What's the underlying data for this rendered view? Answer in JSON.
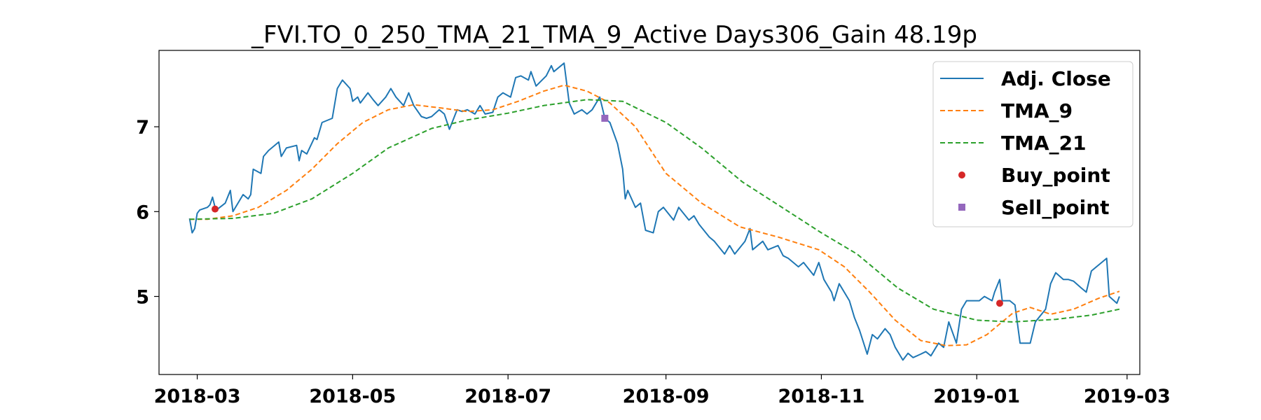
{
  "chart_data": {
    "type": "line",
    "title": "_FVI.TO_0_250_TMA_21_TMA_9_Active Days306_Gain  48.19p",
    "xlabel": "",
    "ylabel": "",
    "x_axis": "date",
    "xlim": [
      "2018-02-14",
      "2019-03-06"
    ],
    "ylim": [
      4.08,
      7.9
    ],
    "x_ticks": [
      "2018-03-01",
      "2018-05-01",
      "2018-07-01",
      "2018-09-01",
      "2018-11-01",
      "2019-01-01",
      "2019-03-01"
    ],
    "x_tick_labels": [
      "2018-03",
      "2018-05",
      "2018-07",
      "2018-09",
      "2018-11",
      "2019-01",
      "2019-03"
    ],
    "y_ticks": [
      5,
      6,
      7
    ],
    "y_tick_labels": [
      "5",
      "6",
      "7"
    ],
    "grid": false,
    "legend": "top-right",
    "series": [
      {
        "name": "Adj. Close",
        "style": "solid",
        "color": "#1f77b4",
        "points": [
          [
            "2018-02-26",
            5.92
          ],
          [
            "2018-02-27",
            5.75
          ],
          [
            "2018-02-28",
            5.8
          ],
          [
            "2018-03-01",
            5.98
          ],
          [
            "2018-03-02",
            6.02
          ],
          [
            "2018-03-05",
            6.05
          ],
          [
            "2018-03-06",
            6.08
          ],
          [
            "2018-03-07",
            6.17
          ],
          [
            "2018-03-08",
            6.05
          ],
          [
            "2018-03-09",
            6.03
          ],
          [
            "2018-03-12",
            6.1
          ],
          [
            "2018-03-14",
            6.25
          ],
          [
            "2018-03-15",
            6.0
          ],
          [
            "2018-03-16",
            6.05
          ],
          [
            "2018-03-19",
            6.2
          ],
          [
            "2018-03-21",
            6.15
          ],
          [
            "2018-03-22",
            6.2
          ],
          [
            "2018-03-23",
            6.5
          ],
          [
            "2018-03-26",
            6.45
          ],
          [
            "2018-03-27",
            6.65
          ],
          [
            "2018-03-29",
            6.72
          ],
          [
            "2018-04-02",
            6.82
          ],
          [
            "2018-04-03",
            6.65
          ],
          [
            "2018-04-05",
            6.75
          ],
          [
            "2018-04-09",
            6.78
          ],
          [
            "2018-04-10",
            6.6
          ],
          [
            "2018-04-11",
            6.72
          ],
          [
            "2018-04-13",
            6.68
          ],
          [
            "2018-04-16",
            6.87
          ],
          [
            "2018-04-17",
            6.85
          ],
          [
            "2018-04-19",
            7.05
          ],
          [
            "2018-04-23",
            7.1
          ],
          [
            "2018-04-25",
            7.45
          ],
          [
            "2018-04-27",
            7.55
          ],
          [
            "2018-04-30",
            7.45
          ],
          [
            "2018-05-01",
            7.3
          ],
          [
            "2018-05-03",
            7.35
          ],
          [
            "2018-05-04",
            7.28
          ],
          [
            "2018-05-07",
            7.4
          ],
          [
            "2018-05-09",
            7.32
          ],
          [
            "2018-05-11",
            7.25
          ],
          [
            "2018-05-14",
            7.35
          ],
          [
            "2018-05-16",
            7.45
          ],
          [
            "2018-05-18",
            7.35
          ],
          [
            "2018-05-21",
            7.25
          ],
          [
            "2018-05-23",
            7.4
          ],
          [
            "2018-05-25",
            7.25
          ],
          [
            "2018-05-28",
            7.12
          ],
          [
            "2018-05-30",
            7.1
          ],
          [
            "2018-06-01",
            7.12
          ],
          [
            "2018-06-04",
            7.2
          ],
          [
            "2018-06-06",
            7.15
          ],
          [
            "2018-06-08",
            6.97
          ],
          [
            "2018-06-11",
            7.2
          ],
          [
            "2018-06-13",
            7.18
          ],
          [
            "2018-06-15",
            7.2
          ],
          [
            "2018-06-18",
            7.15
          ],
          [
            "2018-06-20",
            7.25
          ],
          [
            "2018-06-22",
            7.15
          ],
          [
            "2018-06-25",
            7.17
          ],
          [
            "2018-06-27",
            7.35
          ],
          [
            "2018-06-29",
            7.4
          ],
          [
            "2018-07-02",
            7.35
          ],
          [
            "2018-07-04",
            7.58
          ],
          [
            "2018-07-06",
            7.6
          ],
          [
            "2018-07-09",
            7.55
          ],
          [
            "2018-07-10",
            7.65
          ],
          [
            "2018-07-12",
            7.48
          ],
          [
            "2018-07-16",
            7.6
          ],
          [
            "2018-07-18",
            7.72
          ],
          [
            "2018-07-19",
            7.65
          ],
          [
            "2018-07-23",
            7.75
          ],
          [
            "2018-07-25",
            7.28
          ],
          [
            "2018-07-27",
            7.15
          ],
          [
            "2018-07-30",
            7.2
          ],
          [
            "2018-08-01",
            7.15
          ],
          [
            "2018-08-03",
            7.2
          ],
          [
            "2018-08-06",
            7.35
          ],
          [
            "2018-08-08",
            7.1
          ],
          [
            "2018-08-10",
            7.05
          ],
          [
            "2018-08-13",
            6.8
          ],
          [
            "2018-08-15",
            6.5
          ],
          [
            "2018-08-16",
            6.15
          ],
          [
            "2018-08-17",
            6.25
          ],
          [
            "2018-08-20",
            6.05
          ],
          [
            "2018-08-22",
            6.1
          ],
          [
            "2018-08-24",
            5.78
          ],
          [
            "2018-08-27",
            5.75
          ],
          [
            "2018-08-29",
            6.0
          ],
          [
            "2018-08-31",
            6.05
          ],
          [
            "2018-09-04",
            5.9
          ],
          [
            "2018-09-06",
            6.05
          ],
          [
            "2018-09-10",
            5.9
          ],
          [
            "2018-09-12",
            5.95
          ],
          [
            "2018-09-14",
            5.85
          ],
          [
            "2018-09-18",
            5.7
          ],
          [
            "2018-09-20",
            5.65
          ],
          [
            "2018-09-24",
            5.5
          ],
          [
            "2018-09-26",
            5.6
          ],
          [
            "2018-09-28",
            5.5
          ],
          [
            "2018-10-02",
            5.65
          ],
          [
            "2018-10-04",
            5.8
          ],
          [
            "2018-10-05",
            5.55
          ],
          [
            "2018-10-09",
            5.65
          ],
          [
            "2018-10-11",
            5.55
          ],
          [
            "2018-10-15",
            5.6
          ],
          [
            "2018-10-17",
            5.48
          ],
          [
            "2018-10-19",
            5.45
          ],
          [
            "2018-10-23",
            5.35
          ],
          [
            "2018-10-25",
            5.4
          ],
          [
            "2018-10-29",
            5.25
          ],
          [
            "2018-10-31",
            5.4
          ],
          [
            "2018-11-02",
            5.2
          ],
          [
            "2018-11-05",
            5.05
          ],
          [
            "2018-11-06",
            4.95
          ],
          [
            "2018-11-08",
            5.15
          ],
          [
            "2018-11-12",
            4.95
          ],
          [
            "2018-11-14",
            4.75
          ],
          [
            "2018-11-16",
            4.6
          ],
          [
            "2018-11-19",
            4.32
          ],
          [
            "2018-11-21",
            4.55
          ],
          [
            "2018-11-23",
            4.5
          ],
          [
            "2018-11-26",
            4.62
          ],
          [
            "2018-11-28",
            4.55
          ],
          [
            "2018-11-30",
            4.4
          ],
          [
            "2018-12-03",
            4.25
          ],
          [
            "2018-12-05",
            4.33
          ],
          [
            "2018-12-07",
            4.28
          ],
          [
            "2018-12-10",
            4.32
          ],
          [
            "2018-12-12",
            4.35
          ],
          [
            "2018-12-14",
            4.3
          ],
          [
            "2018-12-17",
            4.45
          ],
          [
            "2018-12-19",
            4.4
          ],
          [
            "2018-12-21",
            4.7
          ],
          [
            "2018-12-24",
            4.45
          ],
          [
            "2018-12-26",
            4.85
          ],
          [
            "2018-12-28",
            4.95
          ],
          [
            "2019-01-02",
            4.95
          ],
          [
            "2019-01-04",
            5.0
          ],
          [
            "2019-01-07",
            4.95
          ],
          [
            "2019-01-08",
            5.05
          ],
          [
            "2019-01-10",
            5.2
          ],
          [
            "2019-01-11",
            4.95
          ],
          [
            "2019-01-14",
            4.95
          ],
          [
            "2019-01-16",
            4.9
          ],
          [
            "2019-01-18",
            4.45
          ],
          [
            "2019-01-22",
            4.45
          ],
          [
            "2019-01-24",
            4.7
          ],
          [
            "2019-01-28",
            4.85
          ],
          [
            "2019-01-30",
            5.15
          ],
          [
            "2019-02-01",
            5.28
          ],
          [
            "2019-02-04",
            5.2
          ],
          [
            "2019-02-06",
            5.2
          ],
          [
            "2019-02-08",
            5.18
          ],
          [
            "2019-02-11",
            5.1
          ],
          [
            "2019-02-13",
            5.05
          ],
          [
            "2019-02-15",
            5.3
          ],
          [
            "2019-02-19",
            5.4
          ],
          [
            "2019-02-21",
            5.45
          ],
          [
            "2019-02-22",
            5.0
          ],
          [
            "2019-02-25",
            4.92
          ],
          [
            "2019-02-26",
            5.0
          ]
        ]
      },
      {
        "name": "TMA_9",
        "style": "dashed",
        "color": "#ff7f0e",
        "points": [
          [
            "2018-02-26",
            5.91
          ],
          [
            "2018-03-05",
            5.91
          ],
          [
            "2018-03-15",
            5.95
          ],
          [
            "2018-03-25",
            6.05
          ],
          [
            "2018-04-05",
            6.25
          ],
          [
            "2018-04-15",
            6.5
          ],
          [
            "2018-04-25",
            6.8
          ],
          [
            "2018-05-05",
            7.05
          ],
          [
            "2018-05-15",
            7.2
          ],
          [
            "2018-05-25",
            7.26
          ],
          [
            "2018-06-05",
            7.22
          ],
          [
            "2018-06-15",
            7.18
          ],
          [
            "2018-06-25",
            7.2
          ],
          [
            "2018-07-05",
            7.3
          ],
          [
            "2018-07-15",
            7.42
          ],
          [
            "2018-07-23",
            7.49
          ],
          [
            "2018-08-01",
            7.42
          ],
          [
            "2018-08-10",
            7.28
          ],
          [
            "2018-08-20",
            7.0
          ],
          [
            "2018-09-01",
            6.45
          ],
          [
            "2018-09-15",
            6.1
          ],
          [
            "2018-09-30",
            5.82
          ],
          [
            "2018-10-15",
            5.7
          ],
          [
            "2018-10-31",
            5.55
          ],
          [
            "2018-11-10",
            5.35
          ],
          [
            "2018-11-20",
            5.05
          ],
          [
            "2018-11-30",
            4.72
          ],
          [
            "2018-12-10",
            4.48
          ],
          [
            "2018-12-20",
            4.42
          ],
          [
            "2018-12-28",
            4.43
          ],
          [
            "2019-01-05",
            4.55
          ],
          [
            "2019-01-15",
            4.8
          ],
          [
            "2019-01-22",
            4.87
          ],
          [
            "2019-01-30",
            4.79
          ],
          [
            "2019-02-08",
            4.85
          ],
          [
            "2019-02-18",
            4.98
          ],
          [
            "2019-02-26",
            5.06
          ]
        ]
      },
      {
        "name": "TMA_21",
        "style": "dashed",
        "color": "#2ca02c",
        "points": [
          [
            "2018-02-26",
            5.91
          ],
          [
            "2018-03-15",
            5.92
          ],
          [
            "2018-03-31",
            5.98
          ],
          [
            "2018-04-15",
            6.15
          ],
          [
            "2018-05-01",
            6.45
          ],
          [
            "2018-05-15",
            6.75
          ],
          [
            "2018-06-01",
            6.98
          ],
          [
            "2018-06-15",
            7.08
          ],
          [
            "2018-07-01",
            7.16
          ],
          [
            "2018-07-15",
            7.25
          ],
          [
            "2018-08-01",
            7.32
          ],
          [
            "2018-08-15",
            7.3
          ],
          [
            "2018-09-01",
            7.05
          ],
          [
            "2018-09-15",
            6.75
          ],
          [
            "2018-10-01",
            6.35
          ],
          [
            "2018-10-15",
            6.08
          ],
          [
            "2018-11-01",
            5.75
          ],
          [
            "2018-11-15",
            5.5
          ],
          [
            "2018-12-01",
            5.1
          ],
          [
            "2018-12-15",
            4.85
          ],
          [
            "2019-01-01",
            4.72
          ],
          [
            "2019-01-15",
            4.7
          ],
          [
            "2019-02-01",
            4.73
          ],
          [
            "2019-02-15",
            4.78
          ],
          [
            "2019-02-26",
            4.85
          ]
        ]
      }
    ],
    "markers": [
      {
        "name": "Buy_point",
        "shape": "circle",
        "color": "#d62728",
        "points": [
          [
            "2018-03-08",
            6.03
          ],
          [
            "2019-01-10",
            4.92
          ]
        ]
      },
      {
        "name": "Sell_point",
        "shape": "square",
        "color": "#9467bd",
        "points": [
          [
            "2018-08-08",
            7.1
          ]
        ]
      }
    ]
  }
}
